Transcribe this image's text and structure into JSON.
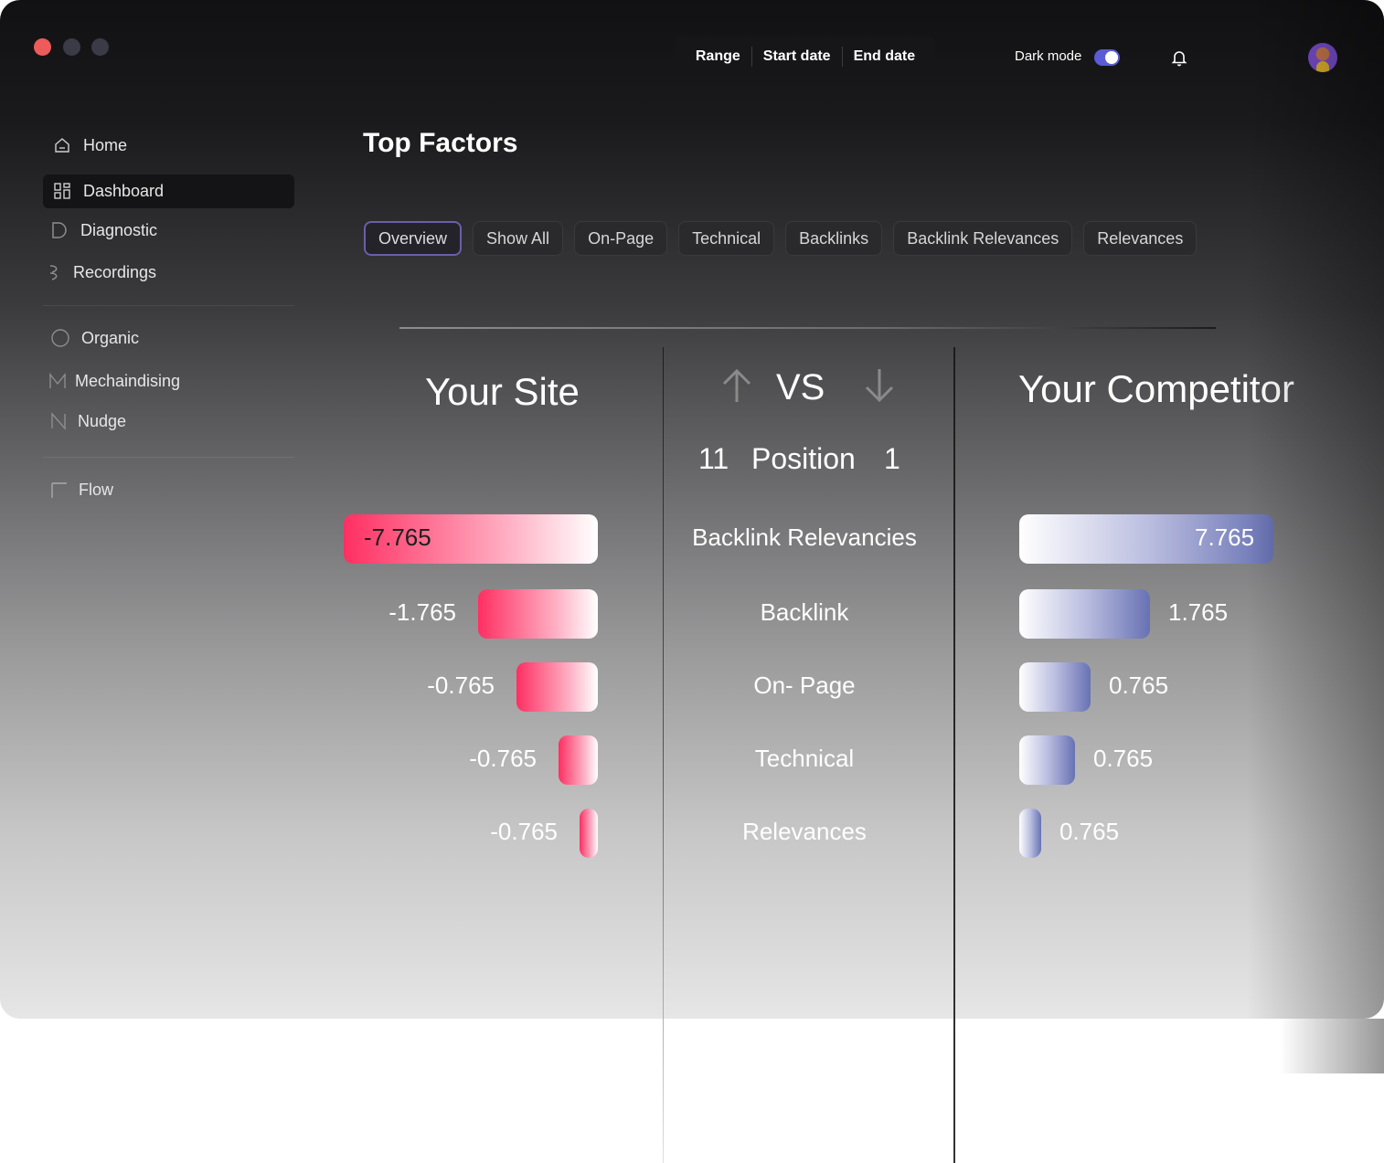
{
  "window": {
    "controls": [
      "close",
      "minimize",
      "maximize"
    ]
  },
  "topbar": {
    "range_label": "Range",
    "start_label": "Start date",
    "end_label": "End date",
    "dark_mode_label": "Dark mode",
    "dark_mode_on": true,
    "bell_icon": "bell-icon"
  },
  "sidebar": {
    "items": [
      {
        "label": "Home",
        "icon": "home-icon"
      },
      {
        "label": "Dashboard",
        "icon": "grid-icon",
        "active": true
      },
      {
        "label": "Diagnostic",
        "icon": "diagnostic-icon"
      },
      {
        "label": "Recordings",
        "icon": "recordings-icon"
      },
      {
        "label": "Organic",
        "icon": "circle-icon"
      },
      {
        "label": "Mechaindising",
        "icon": "m-icon"
      },
      {
        "label": "Nudge",
        "icon": "n-icon"
      },
      {
        "label": "Flow",
        "icon": "flow-icon"
      }
    ]
  },
  "main": {
    "title": "Top Factors",
    "tabs": [
      {
        "label": "Overview",
        "active": true
      },
      {
        "label": "Show All"
      },
      {
        "label": "On-Page"
      },
      {
        "label": "Technical"
      },
      {
        "label": "Backlinks"
      },
      {
        "label": "Backlink Relevances"
      },
      {
        "label": "Relevances"
      }
    ],
    "comparison": {
      "left_title": "Your Site",
      "right_title": "Your Competitor",
      "vs_label": "VS",
      "position_label": "Position",
      "left_position": "11",
      "right_position": "1"
    }
  },
  "chart_data": {
    "type": "bar",
    "categories": [
      "Backlink Relevancies",
      "Backlink",
      "On- Page",
      "Technical",
      "Relevances"
    ],
    "series": [
      {
        "name": "Your Site",
        "values": [
          -7.765,
          -1.765,
          -0.765,
          -0.765,
          -0.765
        ],
        "labels": [
          "-7.765",
          "-1.765",
          "-0.765",
          "-0.765",
          "-0.765"
        ]
      },
      {
        "name": "Your Competitor",
        "values": [
          7.765,
          1.765,
          0.765,
          0.765,
          0.765
        ],
        "labels": [
          "7.765",
          "1.765",
          "0.765",
          "0.765",
          "0.765"
        ]
      }
    ],
    "colors": {
      "left": "#ff2f62",
      "right": "#6872b4"
    }
  }
}
